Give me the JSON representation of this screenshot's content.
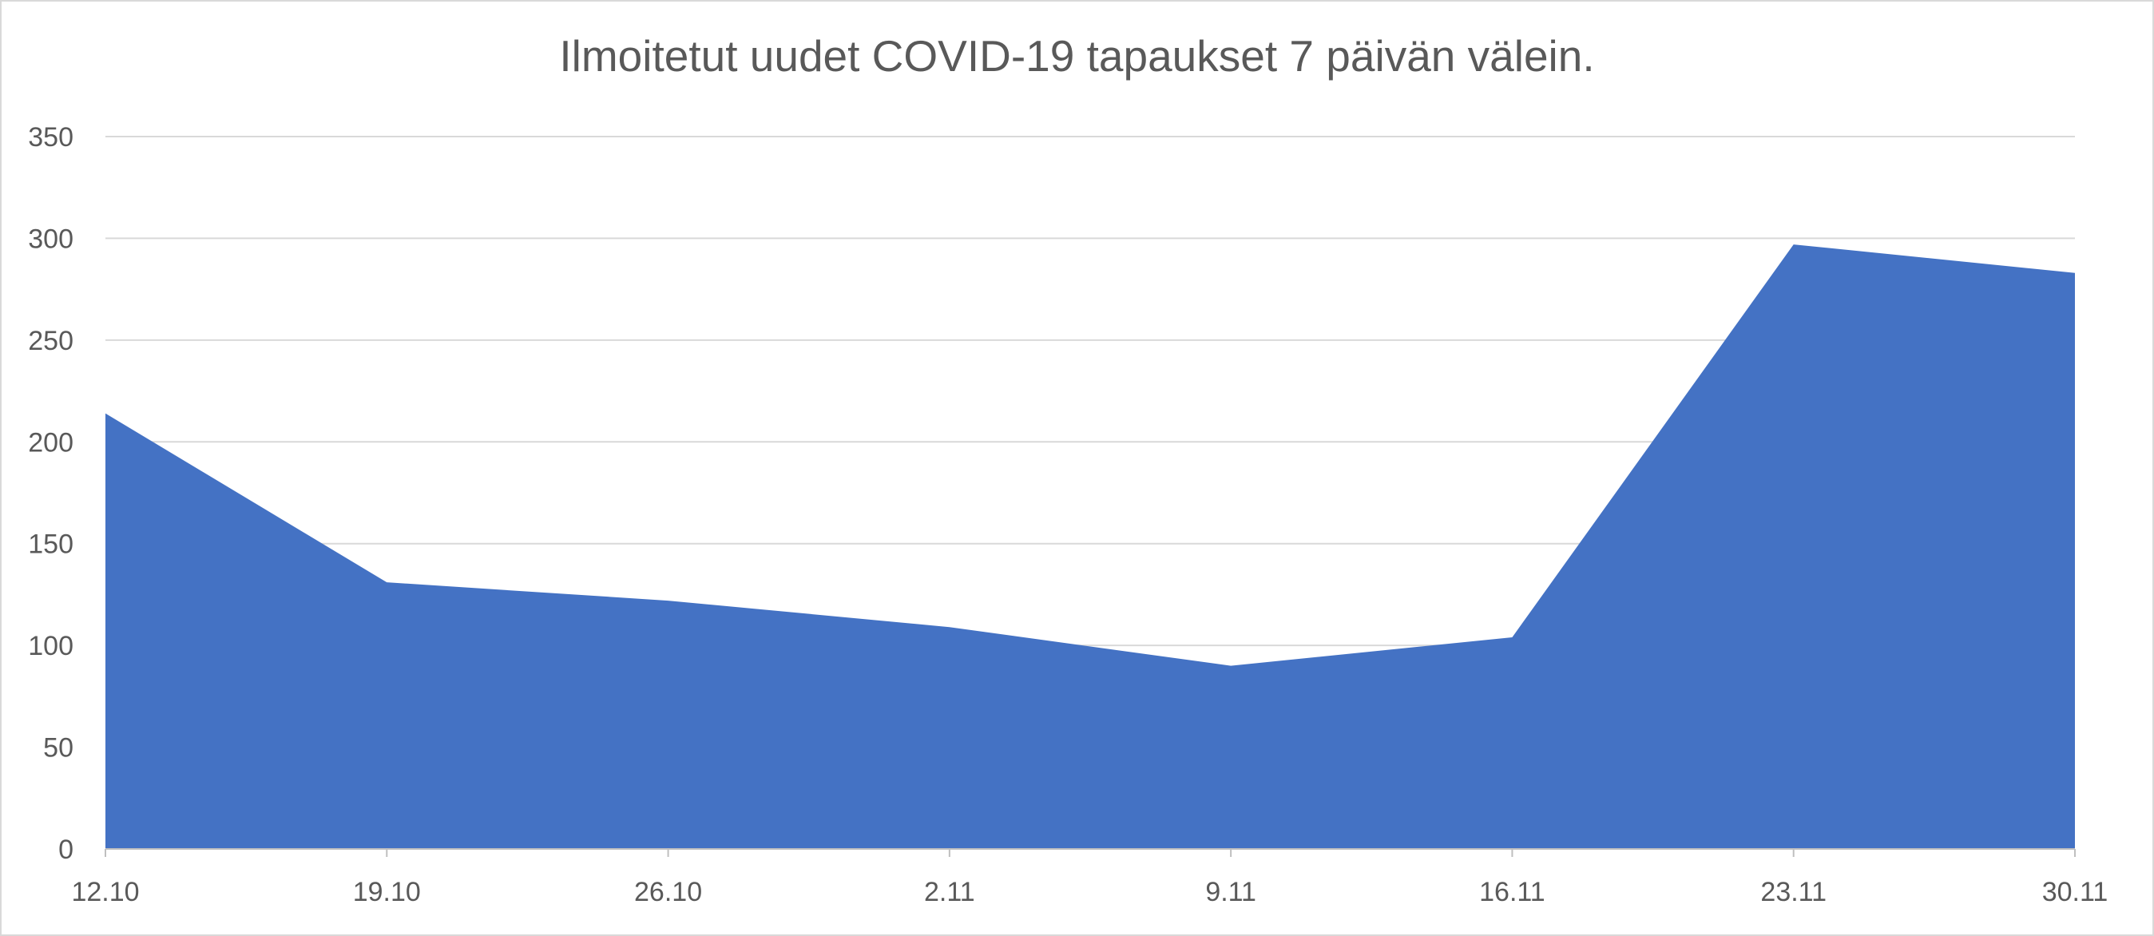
{
  "chart_data": {
    "type": "area",
    "title": "Ilmoitetut uudet COVID-19 tapaukset 7 päivän välein.",
    "xlabel": "",
    "ylabel": "",
    "categories": [
      "12.10",
      "19.10",
      "26.10",
      "2.11",
      "9.11",
      "16.11",
      "23.11",
      "30.11"
    ],
    "series": [
      {
        "values": [
          214,
          131,
          122,
          109,
          90,
          104,
          297,
          283
        ]
      }
    ],
    "ylim": [
      0,
      350
    ],
    "yticks": [
      0,
      50,
      100,
      150,
      200,
      250,
      300,
      350
    ],
    "grid": true,
    "legend": "none",
    "colors": {
      "fill": "#4472c4",
      "grid": "#d9d9d9",
      "axis": "#bfbfbf",
      "text": "#595959"
    }
  }
}
